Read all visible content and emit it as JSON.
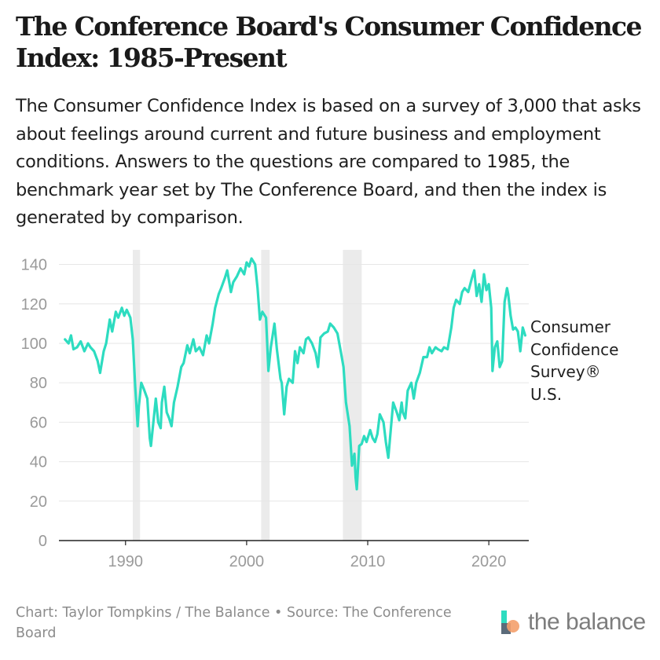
{
  "title": "The Conference Board's Consumer Confidence Index: 1985-Present",
  "subtitle": "The Consumer Confidence Index is based on a survey of 3,000 that asks about feelings around current and future business and employment conditions. Answers to the questions are compared to 1985, the benchmark year set by The Conference Board, and then the index is generated by comparison.",
  "series_label_lines": [
    "Consumer",
    "Confidence",
    "Survey®",
    "U.S."
  ],
  "footer": "Chart: Taylor Tompkins / The Balance • Source: The Conference Board",
  "brand": {
    "name": "the balance"
  },
  "colors": {
    "line": "#2ddcc0",
    "recession": "#ebebeb",
    "grid": "#e6e6e6",
    "axis": "#222222"
  },
  "chart_data": {
    "type": "line",
    "title": "The Conference Board's Consumer Confidence Index: 1985-Present",
    "xlabel": "",
    "ylabel": "",
    "xlim": [
      1984.5,
      2023.3
    ],
    "ylim": [
      0,
      145
    ],
    "x_ticks": [
      1990,
      2000,
      2010,
      2020
    ],
    "y_ticks": [
      0,
      20,
      40,
      60,
      80,
      100,
      120,
      140
    ],
    "grid": "horizontal",
    "recessions": [
      [
        1990.6,
        1991.2
      ],
      [
        2001.2,
        2001.9
      ],
      [
        2007.95,
        2009.5
      ]
    ],
    "series": [
      {
        "name": "Consumer Confidence Survey® U.S.",
        "points": [
          [
            1985.0,
            102
          ],
          [
            1985.3,
            100
          ],
          [
            1985.5,
            104
          ],
          [
            1985.7,
            97
          ],
          [
            1986.0,
            98
          ],
          [
            1986.3,
            101
          ],
          [
            1986.6,
            96
          ],
          [
            1986.9,
            100
          ],
          [
            1987.1,
            98
          ],
          [
            1987.4,
            96
          ],
          [
            1987.7,
            91
          ],
          [
            1987.9,
            85
          ],
          [
            1988.2,
            96
          ],
          [
            1988.4,
            100
          ],
          [
            1988.7,
            112
          ],
          [
            1988.9,
            106
          ],
          [
            1989.2,
            116
          ],
          [
            1989.4,
            113
          ],
          [
            1989.7,
            118
          ],
          [
            1989.9,
            114
          ],
          [
            1990.1,
            117
          ],
          [
            1990.4,
            113
          ],
          [
            1990.6,
            102
          ],
          [
            1990.8,
            78
          ],
          [
            1991.0,
            58
          ],
          [
            1991.1,
            68
          ],
          [
            1991.3,
            80
          ],
          [
            1991.5,
            77
          ],
          [
            1991.8,
            72
          ],
          [
            1992.0,
            52
          ],
          [
            1992.1,
            48
          ],
          [
            1992.3,
            60
          ],
          [
            1992.5,
            72
          ],
          [
            1992.7,
            60
          ],
          [
            1992.9,
            57
          ],
          [
            1993.0,
            70
          ],
          [
            1993.2,
            78
          ],
          [
            1993.4,
            65
          ],
          [
            1993.6,
            62
          ],
          [
            1993.8,
            58
          ],
          [
            1994.0,
            70
          ],
          [
            1994.3,
            78
          ],
          [
            1994.6,
            88
          ],
          [
            1994.8,
            90
          ],
          [
            1995.1,
            99
          ],
          [
            1995.3,
            95
          ],
          [
            1995.6,
            102
          ],
          [
            1995.8,
            96
          ],
          [
            1996.1,
            98
          ],
          [
            1996.4,
            94
          ],
          [
            1996.7,
            104
          ],
          [
            1996.9,
            100
          ],
          [
            1997.2,
            110
          ],
          [
            1997.4,
            118
          ],
          [
            1997.7,
            125
          ],
          [
            1997.9,
            128
          ],
          [
            1998.2,
            133
          ],
          [
            1998.4,
            137
          ],
          [
            1998.7,
            126
          ],
          [
            1998.9,
            131
          ],
          [
            1999.2,
            134
          ],
          [
            1999.5,
            138
          ],
          [
            1999.8,
            135
          ],
          [
            2000.0,
            141
          ],
          [
            2000.2,
            139
          ],
          [
            2000.4,
            143
          ],
          [
            2000.7,
            140
          ],
          [
            2000.9,
            128
          ],
          [
            2001.1,
            112
          ],
          [
            2001.3,
            116
          ],
          [
            2001.6,
            113
          ],
          [
            2001.8,
            86
          ],
          [
            2002.0,
            98
          ],
          [
            2002.3,
            110
          ],
          [
            2002.5,
            97
          ],
          [
            2002.8,
            82
          ],
          [
            2002.9,
            80
          ],
          [
            2003.1,
            64
          ],
          [
            2003.3,
            78
          ],
          [
            2003.5,
            82
          ],
          [
            2003.8,
            80
          ],
          [
            2004.0,
            96
          ],
          [
            2004.2,
            90
          ],
          [
            2004.4,
            98
          ],
          [
            2004.7,
            95
          ],
          [
            2004.9,
            102
          ],
          [
            2005.1,
            103
          ],
          [
            2005.4,
            100
          ],
          [
            2005.7,
            95
          ],
          [
            2005.9,
            88
          ],
          [
            2006.1,
            103
          ],
          [
            2006.4,
            105
          ],
          [
            2006.7,
            106
          ],
          [
            2006.9,
            110
          ],
          [
            2007.2,
            108
          ],
          [
            2007.5,
            105
          ],
          [
            2007.8,
            95
          ],
          [
            2008.0,
            88
          ],
          [
            2008.2,
            70
          ],
          [
            2008.5,
            58
          ],
          [
            2008.7,
            38
          ],
          [
            2008.9,
            44
          ],
          [
            2009.0,
            32
          ],
          [
            2009.1,
            26
          ],
          [
            2009.3,
            48
          ],
          [
            2009.5,
            49
          ],
          [
            2009.7,
            53
          ],
          [
            2009.9,
            50
          ],
          [
            2010.2,
            56
          ],
          [
            2010.4,
            52
          ],
          [
            2010.6,
            50
          ],
          [
            2010.8,
            54
          ],
          [
            2011.0,
            64
          ],
          [
            2011.3,
            60
          ],
          [
            2011.5,
            50
          ],
          [
            2011.7,
            42
          ],
          [
            2011.9,
            56
          ],
          [
            2012.1,
            70
          ],
          [
            2012.4,
            65
          ],
          [
            2012.6,
            61
          ],
          [
            2012.8,
            70
          ],
          [
            2012.9,
            65
          ],
          [
            2013.1,
            62
          ],
          [
            2013.3,
            76
          ],
          [
            2013.6,
            80
          ],
          [
            2013.8,
            72
          ],
          [
            2014.0,
            80
          ],
          [
            2014.3,
            85
          ],
          [
            2014.6,
            93
          ],
          [
            2014.9,
            93
          ],
          [
            2015.1,
            98
          ],
          [
            2015.3,
            95
          ],
          [
            2015.6,
            98
          ],
          [
            2015.8,
            97
          ],
          [
            2016.1,
            96
          ],
          [
            2016.3,
            98
          ],
          [
            2016.6,
            97
          ],
          [
            2016.9,
            108
          ],
          [
            2017.1,
            118
          ],
          [
            2017.3,
            122
          ],
          [
            2017.6,
            120
          ],
          [
            2017.8,
            126
          ],
          [
            2018.0,
            128
          ],
          [
            2018.3,
            126
          ],
          [
            2018.6,
            133
          ],
          [
            2018.8,
            137
          ],
          [
            2019.0,
            124
          ],
          [
            2019.2,
            130
          ],
          [
            2019.4,
            121
          ],
          [
            2019.6,
            135
          ],
          [
            2019.8,
            127
          ],
          [
            2020.0,
            130
          ],
          [
            2020.2,
            118
          ],
          [
            2020.3,
            86
          ],
          [
            2020.5,
            98
          ],
          [
            2020.7,
            101
          ],
          [
            2020.9,
            88
          ],
          [
            2021.1,
            91
          ],
          [
            2021.3,
            121
          ],
          [
            2021.5,
            128
          ],
          [
            2021.6,
            125
          ],
          [
            2021.8,
            114
          ],
          [
            2022.0,
            107
          ],
          [
            2022.2,
            108
          ],
          [
            2022.4,
            106
          ],
          [
            2022.6,
            96
          ],
          [
            2022.8,
            108
          ],
          [
            2023.0,
            104
          ]
        ]
      }
    ]
  }
}
